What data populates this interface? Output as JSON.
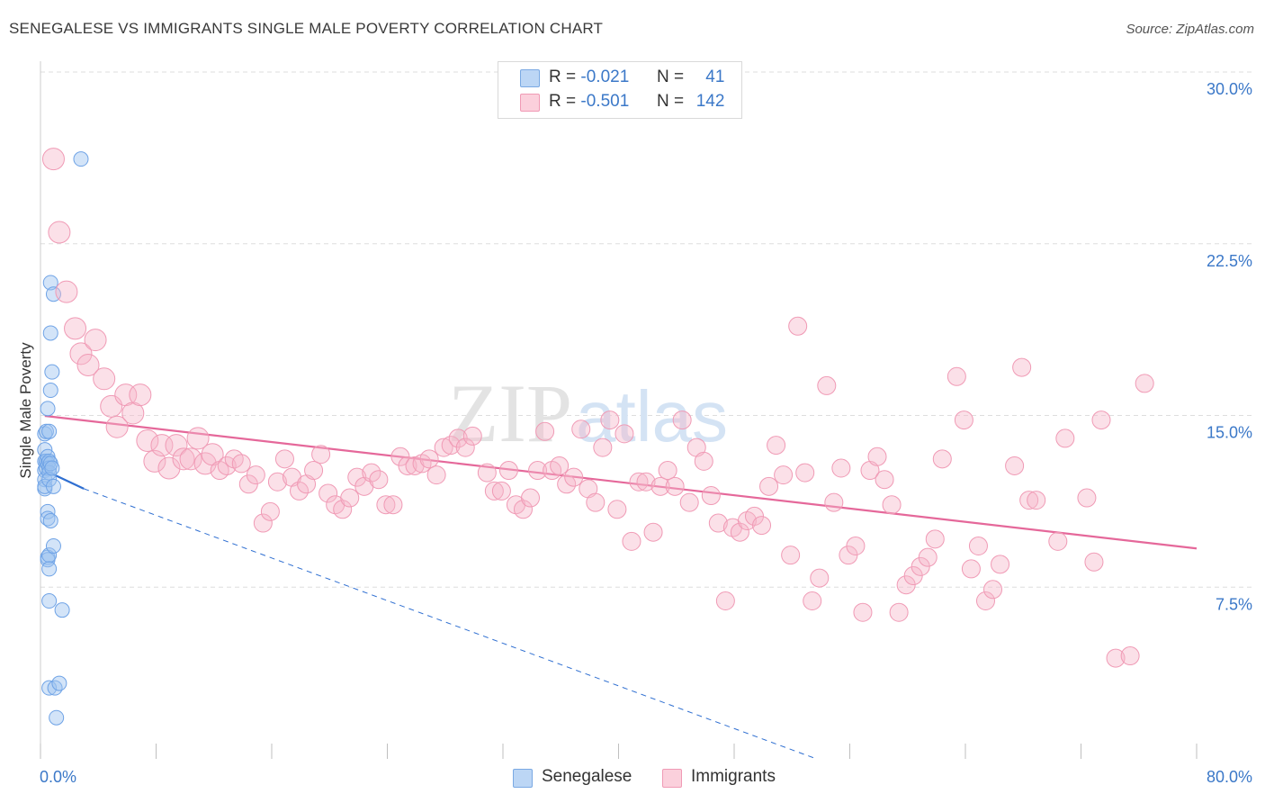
{
  "title": "SENEGALESE VS IMMIGRANTS SINGLE MALE POVERTY CORRELATION CHART",
  "source": "Source: ZipAtlas.com",
  "watermark": {
    "left": "ZIP",
    "right": "atlas"
  },
  "legend_top": [
    {
      "r_label": "R =",
      "r_value": "-0.021",
      "n_label": "N =",
      "n_value": "41",
      "color": "#9dc3ef"
    },
    {
      "r_label": "R =",
      "r_value": "-0.501",
      "n_label": "N =",
      "n_value": "142",
      "color": "#f6b6c8"
    }
  ],
  "legend_bottom": [
    {
      "label": "Senegalese",
      "color": "#9dc3ef"
    },
    {
      "label": "Immigrants",
      "color": "#f6b6c8"
    }
  ],
  "chart_data": {
    "type": "scatter",
    "xlabel": "",
    "ylabel": "Single Male Poverty",
    "xlim": [
      0,
      80
    ],
    "ylim": [
      0,
      30
    ],
    "x_tick_labels": [
      "0.0%",
      "80.0%"
    ],
    "y_tick_labels": [
      "7.5%",
      "15.0%",
      "22.5%",
      "30.0%"
    ],
    "y_ticks": [
      7.5,
      15.0,
      22.5,
      30.0
    ],
    "grid": true,
    "legend_placement": "top-center",
    "series": [
      {
        "name": "Senegalese",
        "color": "#6fa3e6",
        "points": [
          [
            0.3,
            14.2
          ],
          [
            0.3,
            13.5
          ],
          [
            0.3,
            13.0
          ],
          [
            0.3,
            12.6
          ],
          [
            0.3,
            12.2
          ],
          [
            0.3,
            11.8
          ],
          [
            0.3,
            11.9
          ],
          [
            0.4,
            14.3
          ],
          [
            0.4,
            13.0
          ],
          [
            0.4,
            12.7
          ],
          [
            0.5,
            15.3
          ],
          [
            0.5,
            13.2
          ],
          [
            0.5,
            12.9
          ],
          [
            0.5,
            10.8
          ],
          [
            0.5,
            10.5
          ],
          [
            0.5,
            8.8
          ],
          [
            0.5,
            8.7
          ],
          [
            0.6,
            14.3
          ],
          [
            0.6,
            13.0
          ],
          [
            0.6,
            12.7
          ],
          [
            0.6,
            12.5
          ],
          [
            0.6,
            12.2
          ],
          [
            0.6,
            8.9
          ],
          [
            0.6,
            8.3
          ],
          [
            0.6,
            6.9
          ],
          [
            0.6,
            3.1
          ],
          [
            0.7,
            20.8
          ],
          [
            0.7,
            18.6
          ],
          [
            0.7,
            16.1
          ],
          [
            0.7,
            12.9
          ],
          [
            0.7,
            10.4
          ],
          [
            0.8,
            16.9
          ],
          [
            0.8,
            12.7
          ],
          [
            0.9,
            20.3
          ],
          [
            0.9,
            11.9
          ],
          [
            0.9,
            9.3
          ],
          [
            1.0,
            3.1
          ],
          [
            1.1,
            1.8
          ],
          [
            1.3,
            3.3
          ],
          [
            1.5,
            6.5
          ],
          [
            2.8,
            26.2
          ]
        ]
      },
      {
        "name": "Immigrants",
        "color": "#f28aab",
        "points": [
          [
            0.9,
            26.2
          ],
          [
            1.3,
            23.0
          ],
          [
            1.8,
            20.4
          ],
          [
            2.4,
            18.8
          ],
          [
            2.8,
            17.7
          ],
          [
            3.3,
            17.2
          ],
          [
            3.8,
            18.3
          ],
          [
            4.4,
            16.6
          ],
          [
            4.9,
            15.4
          ],
          [
            5.3,
            14.5
          ],
          [
            5.9,
            15.9
          ],
          [
            6.4,
            15.1
          ],
          [
            6.9,
            15.9
          ],
          [
            7.4,
            13.9
          ],
          [
            7.9,
            13.0
          ],
          [
            8.4,
            13.7
          ],
          [
            8.9,
            12.7
          ],
          [
            9.4,
            13.7
          ],
          [
            9.9,
            13.1
          ],
          [
            10.4,
            13.1
          ],
          [
            10.9,
            14.0
          ],
          [
            11.4,
            12.9
          ],
          [
            11.9,
            13.3
          ],
          [
            12.4,
            12.6
          ],
          [
            12.9,
            12.8
          ],
          [
            13.4,
            13.1
          ],
          [
            13.9,
            12.9
          ],
          [
            14.4,
            12.0
          ],
          [
            14.9,
            12.4
          ],
          [
            15.4,
            10.3
          ],
          [
            15.9,
            10.8
          ],
          [
            16.4,
            12.1
          ],
          [
            16.9,
            13.1
          ],
          [
            17.4,
            12.3
          ],
          [
            17.9,
            11.7
          ],
          [
            18.4,
            12.0
          ],
          [
            18.9,
            12.6
          ],
          [
            19.4,
            13.3
          ],
          [
            19.9,
            11.6
          ],
          [
            20.4,
            11.1
          ],
          [
            20.9,
            10.9
          ],
          [
            21.4,
            11.4
          ],
          [
            21.9,
            12.3
          ],
          [
            22.4,
            11.9
          ],
          [
            22.9,
            12.5
          ],
          [
            23.4,
            12.2
          ],
          [
            23.9,
            11.1
          ],
          [
            24.4,
            11.1
          ],
          [
            24.9,
            13.2
          ],
          [
            25.4,
            12.8
          ],
          [
            25.9,
            12.8
          ],
          [
            26.4,
            12.9
          ],
          [
            26.9,
            13.1
          ],
          [
            27.4,
            12.4
          ],
          [
            27.9,
            13.6
          ],
          [
            28.4,
            13.7
          ],
          [
            28.9,
            14.0
          ],
          [
            29.4,
            13.6
          ],
          [
            29.9,
            14.1
          ],
          [
            30.9,
            12.5
          ],
          [
            31.4,
            11.7
          ],
          [
            31.9,
            11.7
          ],
          [
            32.4,
            12.6
          ],
          [
            32.9,
            11.1
          ],
          [
            33.4,
            10.9
          ],
          [
            33.9,
            11.4
          ],
          [
            34.4,
            12.6
          ],
          [
            34.9,
            14.3
          ],
          [
            35.4,
            12.6
          ],
          [
            35.9,
            12.8
          ],
          [
            36.4,
            12.0
          ],
          [
            36.9,
            12.3
          ],
          [
            37.4,
            14.4
          ],
          [
            37.9,
            11.8
          ],
          [
            38.4,
            11.2
          ],
          [
            38.9,
            13.6
          ],
          [
            39.4,
            14.8
          ],
          [
            39.9,
            10.9
          ],
          [
            40.4,
            14.2
          ],
          [
            40.9,
            9.5
          ],
          [
            41.4,
            12.1
          ],
          [
            41.9,
            12.1
          ],
          [
            42.4,
            9.9
          ],
          [
            42.9,
            11.9
          ],
          [
            43.4,
            12.6
          ],
          [
            43.9,
            11.9
          ],
          [
            44.4,
            14.8
          ],
          [
            44.9,
            11.2
          ],
          [
            45.4,
            13.6
          ],
          [
            45.9,
            13.0
          ],
          [
            46.4,
            11.5
          ],
          [
            46.9,
            10.3
          ],
          [
            47.4,
            6.9
          ],
          [
            47.9,
            10.1
          ],
          [
            48.4,
            9.9
          ],
          [
            48.9,
            10.4
          ],
          [
            49.4,
            10.6
          ],
          [
            49.9,
            10.2
          ],
          [
            50.4,
            11.9
          ],
          [
            50.9,
            13.7
          ],
          [
            51.4,
            12.4
          ],
          [
            51.9,
            8.9
          ],
          [
            52.4,
            18.9
          ],
          [
            52.9,
            12.5
          ],
          [
            53.4,
            6.9
          ],
          [
            53.9,
            7.9
          ],
          [
            54.4,
            16.3
          ],
          [
            54.9,
            11.2
          ],
          [
            55.4,
            12.7
          ],
          [
            55.9,
            8.9
          ],
          [
            56.4,
            9.3
          ],
          [
            56.9,
            6.4
          ],
          [
            57.4,
            12.6
          ],
          [
            57.9,
            13.2
          ],
          [
            58.4,
            12.2
          ],
          [
            58.9,
            11.1
          ],
          [
            59.4,
            6.4
          ],
          [
            59.9,
            7.6
          ],
          [
            60.4,
            8.0
          ],
          [
            60.9,
            8.4
          ],
          [
            61.4,
            8.8
          ],
          [
            61.9,
            9.6
          ],
          [
            62.4,
            13.1
          ],
          [
            63.4,
            16.7
          ],
          [
            63.9,
            14.8
          ],
          [
            64.4,
            8.3
          ],
          [
            64.9,
            9.3
          ],
          [
            65.4,
            6.9
          ],
          [
            65.9,
            7.4
          ],
          [
            66.4,
            8.5
          ],
          [
            67.4,
            12.8
          ],
          [
            67.9,
            17.1
          ],
          [
            68.4,
            11.3
          ],
          [
            68.9,
            11.3
          ],
          [
            70.4,
            9.5
          ],
          [
            70.9,
            14.0
          ],
          [
            72.4,
            11.4
          ],
          [
            72.9,
            8.6
          ],
          [
            73.4,
            14.8
          ],
          [
            74.4,
            4.4
          ],
          [
            75.4,
            4.5
          ],
          [
            76.4,
            16.4
          ]
        ]
      }
    ],
    "trendlines": [
      {
        "series": "Senegalese",
        "solid": [
          [
            0.3,
            12.6
          ],
          [
            3.0,
            11.8
          ]
        ],
        "dashed": [
          [
            3.0,
            11.8
          ],
          [
            53.7,
            0.0
          ]
        ]
      },
      {
        "series": "Immigrants",
        "solid": [
          [
            0.3,
            14.98
          ],
          [
            80.0,
            9.19
          ]
        ]
      }
    ]
  }
}
